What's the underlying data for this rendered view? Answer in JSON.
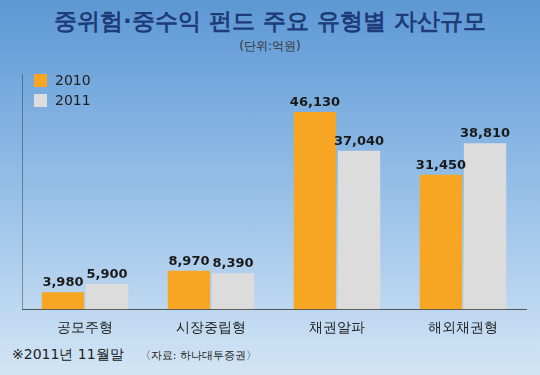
{
  "chart_data": {
    "type": "bar",
    "title": "중위험·중수익 펀드 주요 유형별 자산규모",
    "subtitle": "(단위:억원)",
    "categories": [
      "공모주형",
      "시장중립형",
      "채권알파",
      "해외채권형"
    ],
    "series": [
      {
        "name": "2010",
        "color": "#f6a623",
        "values": [
          3980,
          8970,
          46130,
          31450
        ],
        "value_labels": [
          "3,980",
          "8,970",
          "46,130",
          "31,450"
        ]
      },
      {
        "name": "2011",
        "color": "#dcdcdc",
        "values": [
          5900,
          8390,
          37040,
          38810
        ],
        "value_labels": [
          "5,900",
          "8,390",
          "37,040",
          "38,810"
        ]
      }
    ],
    "ylim": [
      0,
      55000
    ],
    "grid": false,
    "legend": "top-left",
    "data_labels": true,
    "tick_labels": "x",
    "notes": [
      "※2011년 11월말",
      "〈자료: 하나대투증권〉"
    ]
  }
}
